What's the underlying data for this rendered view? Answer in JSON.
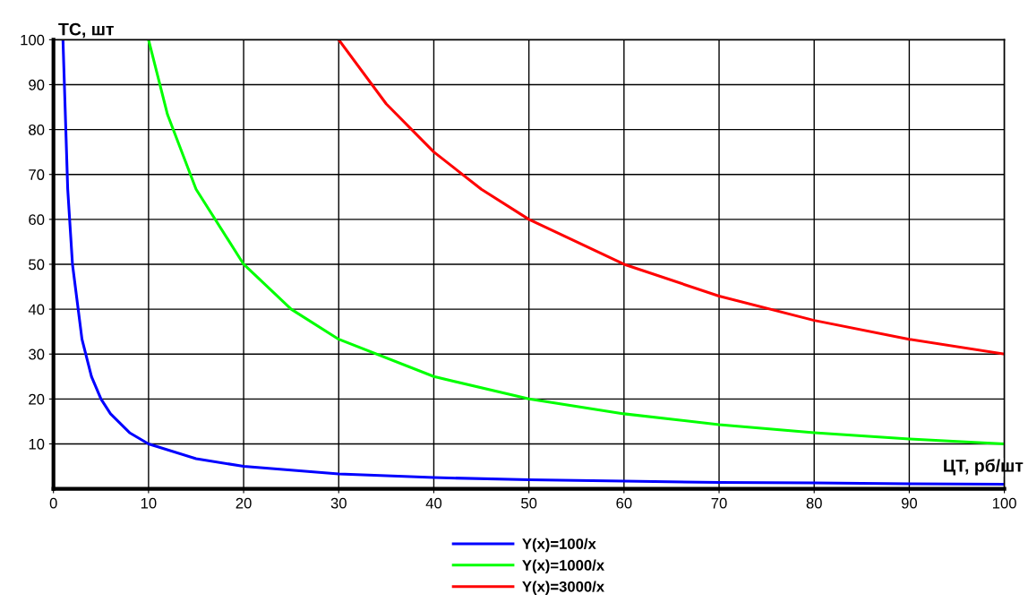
{
  "chart_data": {
    "type": "line",
    "xlabel": "ЦТ, рб/шт",
    "ylabel": "ТС, шт",
    "xlim": [
      0,
      100
    ],
    "ylim": [
      0,
      100
    ],
    "xticks": [
      0,
      10,
      20,
      30,
      40,
      50,
      60,
      70,
      80,
      90,
      100
    ],
    "yticks": [
      10,
      20,
      30,
      40,
      50,
      60,
      70,
      80,
      90,
      100
    ],
    "grid": true,
    "legend": "bottom",
    "line_style": "solid",
    "series": [
      {
        "name": "Y(x)=100/x",
        "color": "#0000ff",
        "x": [
          1,
          1.5,
          2,
          3,
          4,
          5,
          6,
          8,
          10,
          15,
          20,
          30,
          40,
          50,
          60,
          70,
          80,
          90,
          100
        ],
        "values": [
          100,
          66.7,
          50,
          33.3,
          25,
          20,
          16.7,
          12.5,
          10,
          6.7,
          5,
          3.3,
          2.5,
          2,
          1.7,
          1.4,
          1.3,
          1.1,
          1
        ]
      },
      {
        "name": "Y(x)=1000/x",
        "color": "#00ff00",
        "x": [
          10,
          12,
          15,
          20,
          25,
          30,
          40,
          50,
          60,
          70,
          80,
          90,
          100
        ],
        "values": [
          100,
          83.3,
          66.7,
          50,
          40,
          33.3,
          25,
          20,
          16.7,
          14.3,
          12.5,
          11.1,
          10
        ]
      },
      {
        "name": "Y(x)=3000/x",
        "color": "#ff0000",
        "x": [
          30,
          35,
          40,
          45,
          50,
          60,
          70,
          80,
          90,
          100
        ],
        "values": [
          100,
          85.7,
          75,
          66.7,
          60,
          50,
          42.9,
          37.5,
          33.3,
          30
        ]
      }
    ]
  }
}
